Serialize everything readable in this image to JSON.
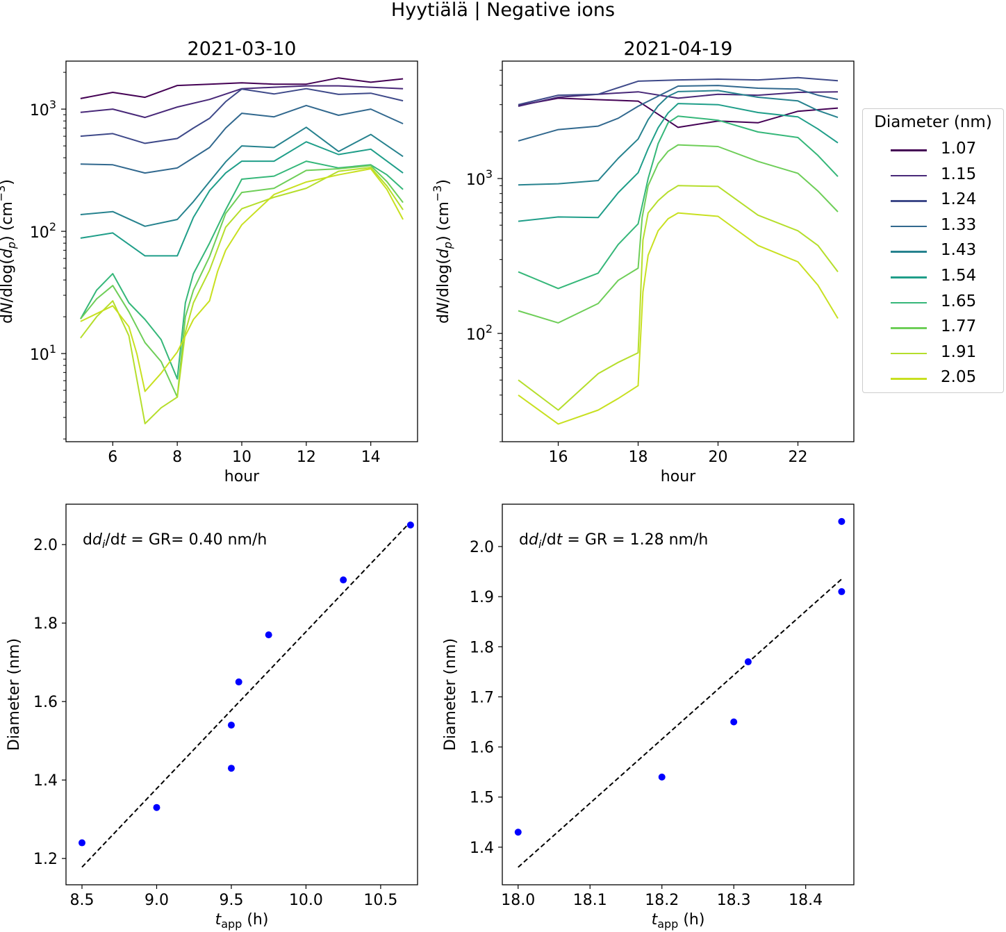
{
  "figure": {
    "suptitle": "Hyytiälä | Negative ions"
  },
  "legend": {
    "title": "Diameter (nm)",
    "items": [
      {
        "label": "1.07",
        "color": "#440154"
      },
      {
        "label": "1.15",
        "color": "#482878"
      },
      {
        "label": "1.24",
        "color": "#3e4989"
      },
      {
        "label": "1.33",
        "color": "#31688e"
      },
      {
        "label": "1.43",
        "color": "#26828e"
      },
      {
        "label": "1.54",
        "color": "#1f9e89"
      },
      {
        "label": "1.65",
        "color": "#35b779"
      },
      {
        "label": "1.77",
        "color": "#6ece58"
      },
      {
        "label": "1.91",
        "color": "#b5de2b"
      },
      {
        "label": "2.05",
        "color": "#c8e020"
      }
    ]
  },
  "chart_data": [
    {
      "id": "concentration-2021-03-10",
      "type": "line",
      "title": "2021-03-10",
      "xlabel": "hour",
      "ylabel": "dN/dlog(dp) (cm^-3)",
      "yscale": "log",
      "xlim": [
        4.55,
        15.45
      ],
      "ylim": [
        1.9,
        2470
      ],
      "xticks": [
        6,
        8,
        10,
        12,
        14
      ],
      "yticks": [
        {
          "value": 10,
          "base": "10",
          "exp": "1"
        },
        {
          "value": 100,
          "base": "10",
          "exp": "2"
        },
        {
          "value": 1000,
          "base": "10",
          "exp": "3"
        }
      ],
      "grid": false,
      "series": [
        {
          "name": "1.07",
          "x": [
            5,
            6,
            7,
            8,
            9,
            10,
            11,
            12,
            13,
            14,
            15
          ],
          "y": [
            1220,
            1370,
            1250,
            1560,
            1600,
            1640,
            1600,
            1600,
            1800,
            1660,
            1770
          ]
        },
        {
          "name": "1.15",
          "x": [
            5,
            6,
            7,
            8,
            9,
            10,
            11,
            12,
            13,
            14,
            15
          ],
          "y": [
            940,
            1000,
            855,
            1040,
            1200,
            1470,
            1510,
            1550,
            1550,
            1510,
            1470
          ]
        },
        {
          "name": "1.24",
          "x": [
            5,
            6,
            7,
            8,
            8.5,
            9,
            9.5,
            10,
            11,
            12,
            13,
            14,
            15
          ],
          "y": [
            600,
            630,
            525,
            575,
            700,
            840,
            1150,
            1460,
            1330,
            1470,
            1320,
            1350,
            1170
          ]
        },
        {
          "name": "1.33",
          "x": [
            5,
            6,
            7,
            8,
            8.5,
            9,
            9.5,
            10,
            11,
            12,
            13,
            14,
            15
          ],
          "y": [
            355,
            350,
            300,
            330,
            400,
            485,
            700,
            925,
            865,
            1070,
            890,
            1000,
            760
          ]
        },
        {
          "name": "1.43",
          "x": [
            5,
            6,
            7,
            8,
            8.5,
            9,
            9.5,
            10,
            11,
            12,
            13,
            14,
            15
          ],
          "y": [
            137,
            145,
            110,
            125,
            175,
            255,
            370,
            500,
            485,
            710,
            450,
            620,
            410
          ]
        },
        {
          "name": "1.54",
          "x": [
            5,
            6,
            7,
            8,
            8.5,
            9,
            9.5,
            10,
            11,
            12,
            13,
            14,
            15
          ],
          "y": [
            88,
            97,
            63,
            63,
            130,
            215,
            300,
            375,
            375,
            540,
            425,
            470,
            300
          ]
        },
        {
          "name": "1.65",
          "x": [
            5,
            5.5,
            6,
            6.5,
            7,
            7.5,
            8,
            8.25,
            8.5,
            9,
            9.5,
            10,
            11,
            12,
            13,
            14,
            14.5,
            15
          ],
          "y": [
            19.2,
            33,
            45,
            26,
            19,
            13,
            6.2,
            26,
            45,
            80,
            150,
            267,
            283,
            375,
            330,
            350,
            290,
            220
          ]
        },
        {
          "name": "1.77",
          "x": [
            5,
            5.5,
            6,
            6.5,
            7,
            7.5,
            8,
            8.25,
            8.5,
            9,
            9.5,
            10,
            11,
            12,
            13,
            14,
            14.5,
            15
          ],
          "y": [
            19.2,
            28,
            36,
            22,
            12.3,
            8.6,
            4.4,
            20,
            33,
            62,
            140,
            208,
            225,
            315,
            325,
            345,
            255,
            172
          ]
        },
        {
          "name": "1.91",
          "x": [
            5,
            5.5,
            6,
            6.5,
            7,
            7.5,
            8,
            8.25,
            8.5,
            9,
            9.5,
            10,
            11,
            12,
            13,
            14,
            14.5,
            15
          ],
          "y": [
            13.4,
            20,
            27,
            14,
            2.67,
            3.6,
            4.4,
            15,
            26,
            48,
            108,
            153,
            190,
            225,
            310,
            333,
            235,
            150
          ]
        },
        {
          "name": "2.05",
          "x": [
            5,
            6,
            6.5,
            6.75,
            7,
            7.5,
            8,
            8.5,
            9,
            9.25,
            9.5,
            10,
            11,
            12,
            13,
            14,
            14.5,
            15
          ],
          "y": [
            18.3,
            24.6,
            16.6,
            9.9,
            4.9,
            6.9,
            10.3,
            19,
            27,
            47,
            70,
            113,
            200,
            253,
            290,
            325,
            220,
            125
          ]
        }
      ]
    },
    {
      "id": "concentration-2021-04-19",
      "type": "line",
      "title": "2021-04-19",
      "xlabel": "hour",
      "ylabel": "dN/dlog(dp) (cm^-3)",
      "yscale": "log",
      "xlim": [
        14.6,
        23.4
      ],
      "ylim": [
        20,
        5730
      ],
      "xticks": [
        16,
        18,
        20,
        22
      ],
      "yticks": [
        {
          "value": 100,
          "base": "10",
          "exp": "2"
        },
        {
          "value": 1000,
          "base": "10",
          "exp": "3"
        }
      ],
      "grid": false,
      "series": [
        {
          "name": "1.07",
          "x": [
            15,
            16,
            17,
            18,
            19,
            20,
            21,
            22,
            23
          ],
          "y": [
            2960,
            3300,
            3230,
            3160,
            2140,
            2350,
            2290,
            2720,
            2850
          ]
        },
        {
          "name": "1.15",
          "x": [
            15,
            16,
            17,
            18,
            19,
            20,
            21,
            22,
            23
          ],
          "y": [
            2930,
            3350,
            3500,
            3630,
            3300,
            3500,
            3450,
            3600,
            3630
          ]
        },
        {
          "name": "1.24",
          "x": [
            15,
            16,
            17,
            18,
            19,
            20,
            21,
            22,
            23
          ],
          "y": [
            3000,
            3450,
            3500,
            4250,
            4330,
            4380,
            4330,
            4480,
            4280
          ]
        },
        {
          "name": "1.33",
          "x": [
            15,
            16,
            17,
            17.5,
            18,
            19,
            20,
            21,
            22,
            22.5,
            23
          ],
          "y": [
            1750,
            2070,
            2180,
            2450,
            2930,
            3950,
            3990,
            3830,
            3780,
            3450,
            3240
          ]
        },
        {
          "name": "1.43",
          "x": [
            15,
            16,
            17,
            17.5,
            18,
            18.25,
            18.5,
            18.75,
            19,
            20,
            21,
            22,
            22.5,
            23
          ],
          "y": [
            910,
            925,
            970,
            1350,
            1800,
            2400,
            2950,
            3400,
            3640,
            3700,
            3350,
            3170,
            2750,
            2480
          ]
        },
        {
          "name": "1.54",
          "x": [
            15,
            16,
            17,
            17.5,
            18,
            18.25,
            18.5,
            18.75,
            19,
            20,
            21,
            22,
            22.5,
            23
          ],
          "y": [
            530,
            565,
            560,
            810,
            1090,
            1560,
            2130,
            2650,
            3050,
            3000,
            2670,
            2500,
            2090,
            1700
          ]
        },
        {
          "name": "1.65",
          "x": [
            15,
            16,
            17,
            17.5,
            18,
            18.25,
            18.5,
            18.75,
            19,
            20,
            21,
            22,
            22.5,
            23
          ],
          "y": [
            250,
            195,
            245,
            375,
            510,
            1000,
            1680,
            2290,
            2530,
            2380,
            2000,
            1840,
            1410,
            1030
          ]
        },
        {
          "name": "1.77",
          "x": [
            15,
            16,
            17,
            17.5,
            18,
            18.1,
            18.25,
            18.5,
            18.75,
            19,
            20,
            21,
            22,
            22.5,
            23
          ],
          "y": [
            140,
            117,
            156,
            220,
            264,
            560,
            900,
            1250,
            1500,
            1650,
            1610,
            1290,
            1080,
            830,
            610
          ]
        },
        {
          "name": "1.91",
          "x": [
            15,
            16,
            17,
            17.5,
            18,
            18.12,
            18.25,
            18.5,
            18.75,
            19,
            20,
            21,
            22,
            22.5,
            23
          ],
          "y": [
            50,
            32,
            55,
            65,
            75,
            400,
            600,
            720,
            820,
            900,
            890,
            580,
            460,
            370,
            250
          ]
        },
        {
          "name": "2.05",
          "x": [
            15,
            16,
            17,
            17.5,
            18,
            18.12,
            18.25,
            18.5,
            18.75,
            19,
            20,
            21,
            22,
            22.5,
            23
          ],
          "y": [
            40,
            26,
            32,
            38,
            46,
            185,
            320,
            460,
            550,
            600,
            570,
            370,
            290,
            205,
            125
          ]
        }
      ]
    },
    {
      "id": "growth-rate-2021-03-10",
      "type": "scatter",
      "title": "",
      "annotation": {
        "prefix": "dd",
        "italic": "i",
        "slash": "/d",
        "italic2": "t",
        "suffix": " = GR= 0.40 nm/h"
      },
      "annotation_text": "ddi/dt = GR= 0.40 nm/h",
      "xlabel": "t_app (h)",
      "xlabel_main": "t",
      "xlabel_sub": "app",
      "xlabel_rest": " (h)",
      "ylabel": "Diameter (nm)",
      "xlim": [
        8.393,
        10.747
      ],
      "ylim": [
        1.133,
        2.103
      ],
      "xticks": [
        "8.5",
        "9.0",
        "9.5",
        "10.0",
        "10.5"
      ],
      "yticks": [
        "1.2",
        "1.4",
        "1.6",
        "1.8",
        "2.0"
      ],
      "grid": false,
      "points": {
        "x": [
          8.5,
          9.0,
          9.5,
          9.5,
          9.55,
          9.75,
          10.25,
          10.7
        ],
        "y": [
          1.24,
          1.33,
          1.43,
          1.54,
          1.65,
          1.77,
          1.91,
          2.05
        ],
        "color": "#0000ff"
      },
      "fit": {
        "x": [
          8.5,
          10.7
        ],
        "y": [
          1.178,
          2.058
        ],
        "color": "#000000",
        "style": "dashed"
      }
    },
    {
      "id": "growth-rate-2021-04-19",
      "type": "scatter",
      "title": "",
      "annotation_text": "ddi/dt = GR = 1.28 nm/h",
      "annotation": {
        "prefix": "dd",
        "italic": "i",
        "slash": "/d",
        "italic2": "t",
        "suffix": " = GR = 1.28 nm/h"
      },
      "xlabel": "t_app (h)",
      "xlabel_main": "t",
      "xlabel_sub": "app",
      "xlabel_rest": " (h)",
      "ylabel": "Diameter (nm)",
      "xlim": [
        17.978,
        18.467
      ],
      "ylim": [
        1.325,
        2.0845
      ],
      "xticks": [
        "18.0",
        "18.1",
        "18.2",
        "18.3",
        "18.4"
      ],
      "yticks": [
        "1.4",
        "1.5",
        "1.6",
        "1.7",
        "1.8",
        "1.9",
        "2.0"
      ],
      "grid": false,
      "points": {
        "x": [
          18.0,
          18.2,
          18.3,
          18.32,
          18.45,
          18.45
        ],
        "y": [
          1.43,
          1.54,
          1.65,
          1.77,
          1.91,
          2.05
        ],
        "color": "#0000ff"
      },
      "fit": {
        "x": [
          18.0,
          18.45
        ],
        "y": [
          1.36,
          1.935
        ],
        "color": "#000000",
        "style": "dashed"
      }
    }
  ]
}
